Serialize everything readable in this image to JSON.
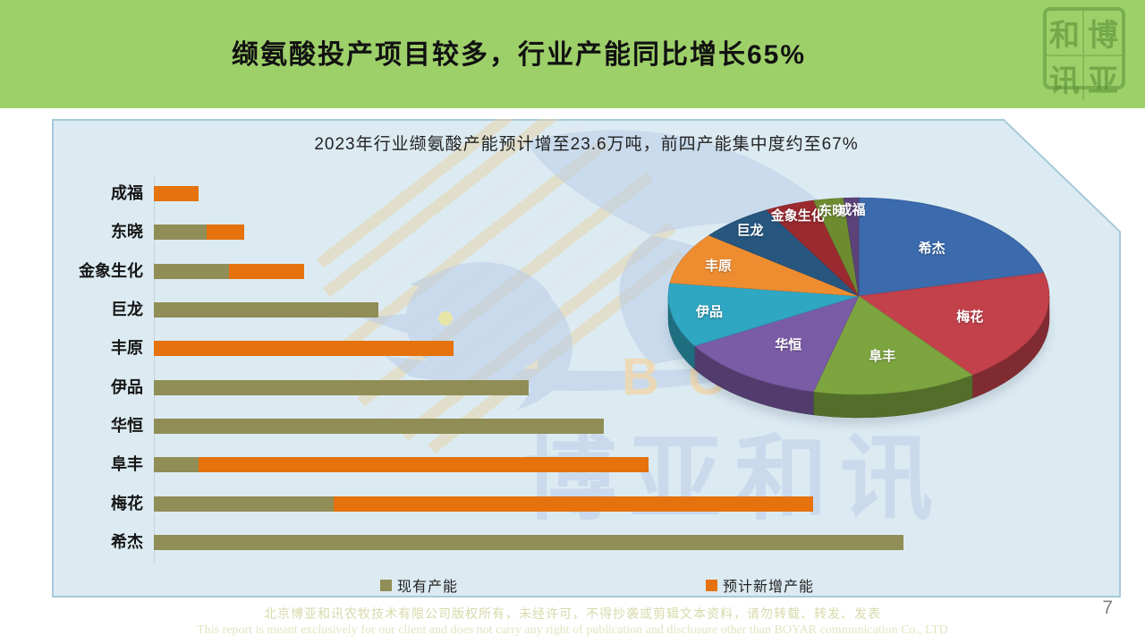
{
  "header": {
    "title": "缬氨酸投产项目较多，行业产能同比增长65%"
  },
  "logo": {
    "seal_chars": [
      "和",
      "博",
      "讯",
      "亚"
    ],
    "seal_meaning": "博亚和讯"
  },
  "panel": {
    "chart_title": "2023年行业缬氨酸产能预计增至23.6万吨，前四产能集中度约至67%"
  },
  "watermark": {
    "text": "博亚和讯",
    "letters": "BO"
  },
  "footer": {
    "line1_zh": "北京博亚和讯农牧技术有限公司版权所有，未经许可，不得抄袭或剪辑文本资料，请勿转载、转发、发表",
    "line2_en": "This report is meant exclusively for our client and does not carry any right of publication and disclosure other than BOYAR communication Co., LTD"
  },
  "page_number": "7",
  "chart_data": [
    {
      "type": "bar",
      "orientation": "horizontal",
      "stacked": true,
      "title": "2023年行业缬氨酸产能预计增至23.6万吨，前四产能集中度约至67%",
      "unit": "万吨 (estimated from bar lengths; total ≈ 23.6万吨)",
      "categories": [
        "成福",
        "东晓",
        "金象生化",
        "巨龙",
        "丰原",
        "伊品",
        "华恒",
        "阜丰",
        "梅花",
        "希杰"
      ],
      "series": [
        {
          "name": "现有产能",
          "color": "#908d56",
          "values": [
            0,
            0.35,
            0.5,
            1.5,
            0,
            2.5,
            3.0,
            0.3,
            1.2,
            5.0
          ]
        },
        {
          "name": "预计新增产能",
          "color": "#e5720d",
          "values": [
            0.3,
            0.25,
            0.5,
            0,
            2.0,
            0,
            0,
            3.0,
            3.2,
            0
          ]
        }
      ],
      "xlim": [
        0,
        5.2
      ],
      "grid": false,
      "legend_position": "bottom"
    },
    {
      "type": "pie",
      "style": "3d",
      "start_angle_deg": 0,
      "direction": "clockwise",
      "labels": [
        "希杰",
        "梅花",
        "阜丰",
        "华恒",
        "伊品",
        "丰原",
        "巨龙",
        "金象生化",
        "东晓",
        "成福"
      ],
      "values": [
        5.0,
        4.4,
        3.3,
        3.0,
        2.5,
        2.0,
        1.5,
        1.0,
        0.6,
        0.3
      ],
      "percentages": [
        21.2,
        18.6,
        14.0,
        12.7,
        10.6,
        8.5,
        6.4,
        4.2,
        2.5,
        1.3
      ],
      "colors": [
        "#3b6aad",
        "#c2414b",
        "#7da53f",
        "#7a5ba5",
        "#2fa6c2",
        "#ee8d30",
        "#27567f",
        "#9a2a30",
        "#6c8c2f",
        "#5b437a"
      ]
    }
  ]
}
